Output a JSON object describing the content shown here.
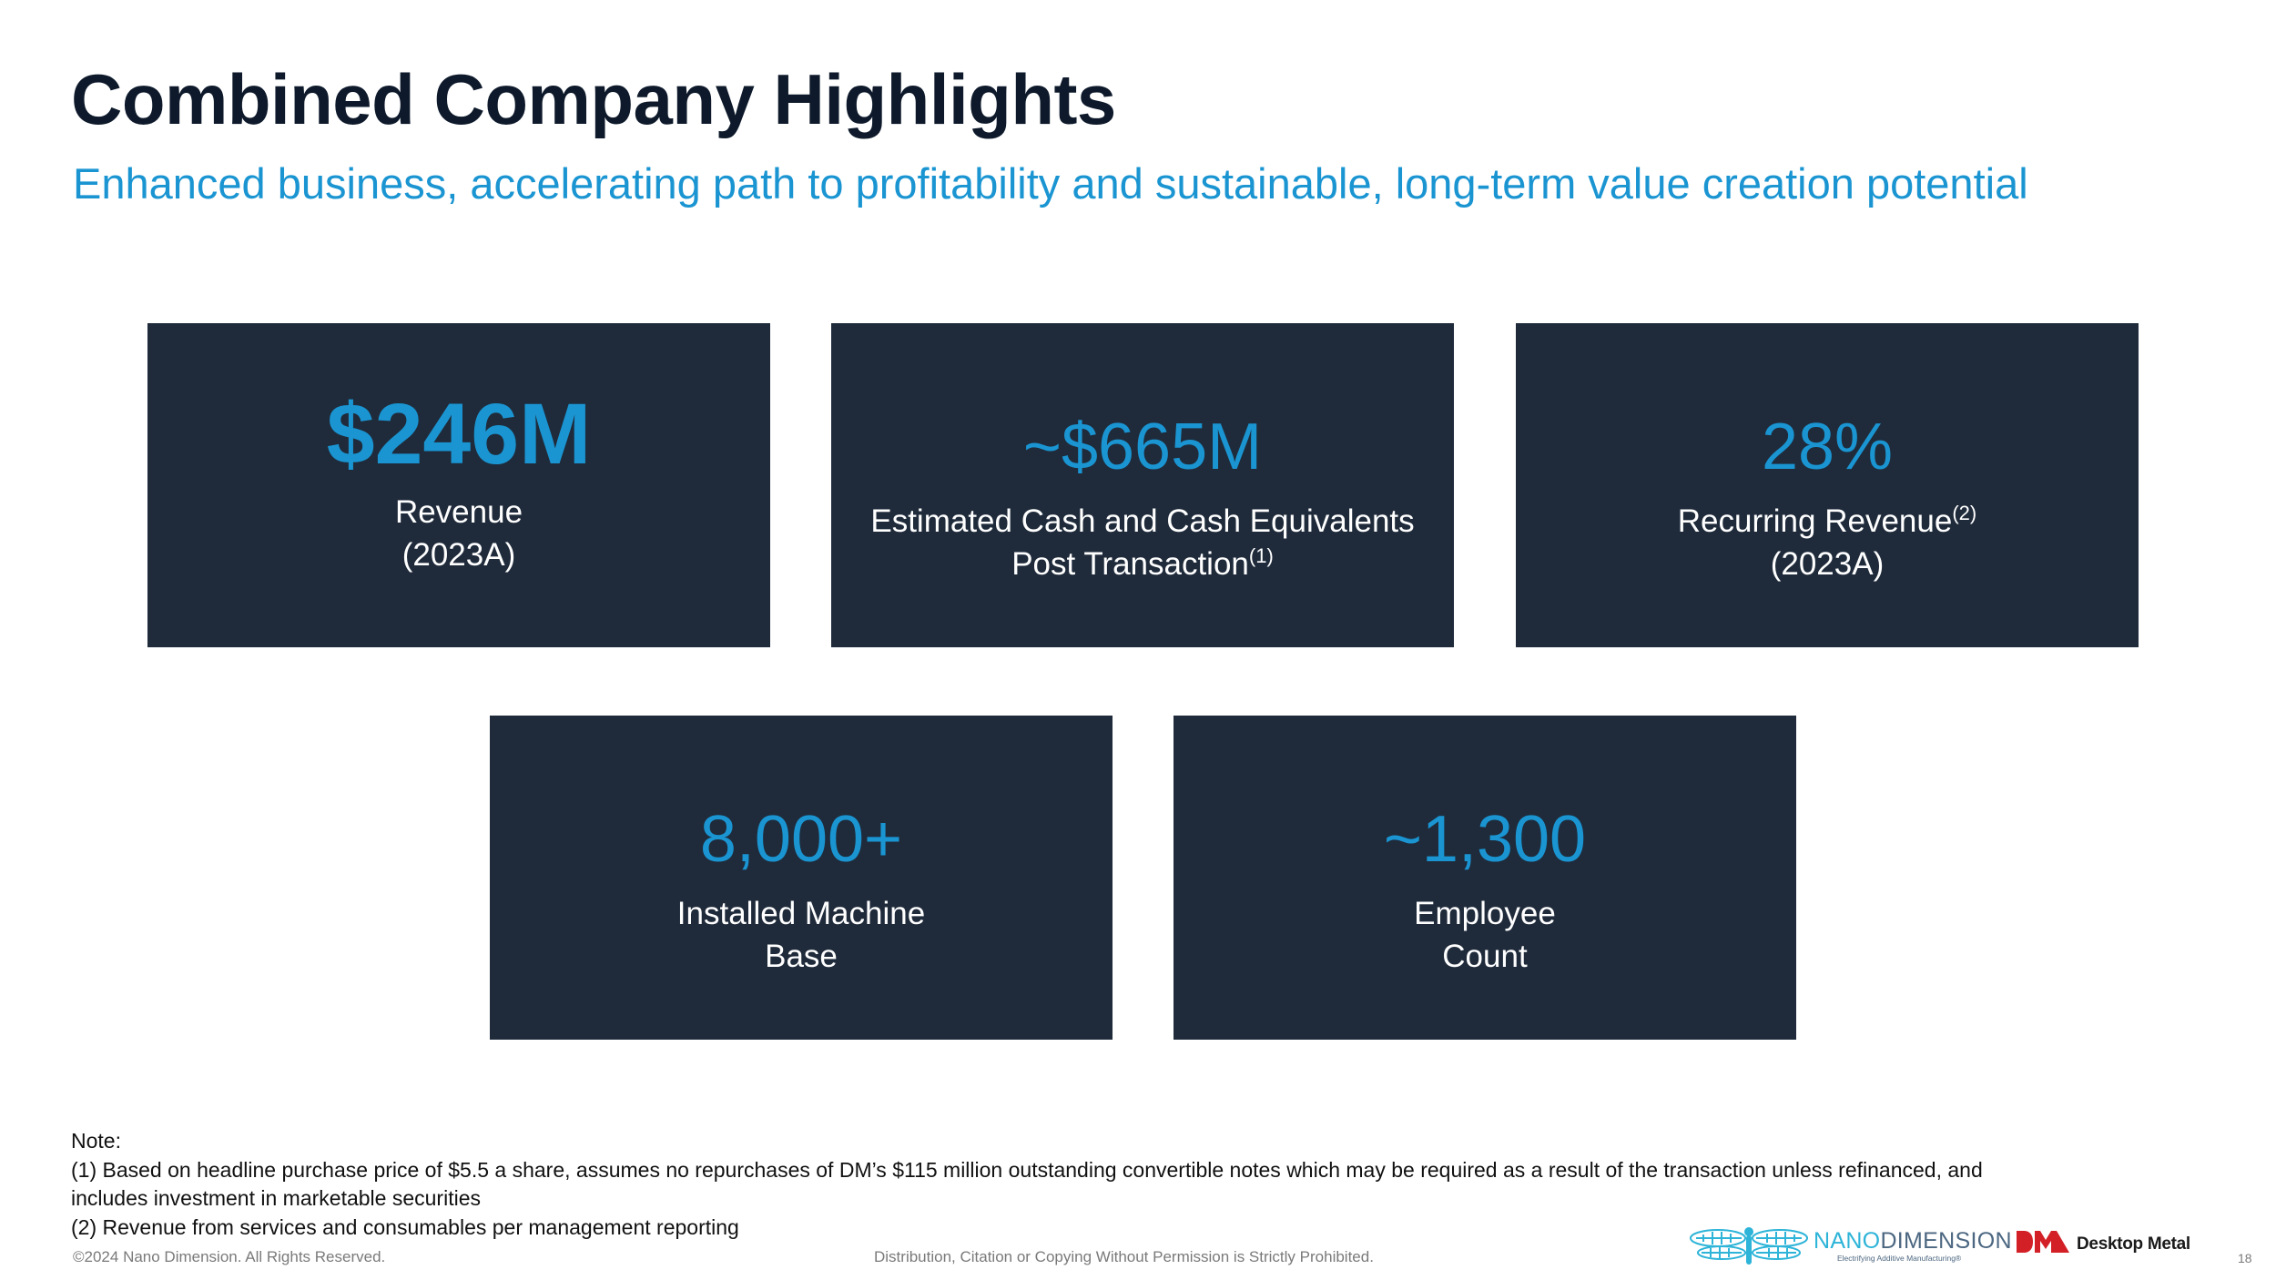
{
  "header": {
    "title": "Combined Company Highlights",
    "subtitle": "Enhanced business, accelerating path to profitability and sustainable, long-term value creation potential"
  },
  "cards": [
    {
      "value": "$246M",
      "label_line1": "Revenue",
      "label_line2": "(2023A)"
    },
    {
      "value": "~$665M",
      "label_line1": "Estimated Cash and Cash Equivalents",
      "label_line2": "Post Transaction",
      "footnote": "(1)"
    },
    {
      "value": "28%",
      "label_line1": "Recurring Revenue",
      "footnote": "(2)",
      "label_line2": "(2023A)"
    },
    {
      "value": "8,000+",
      "label_line1": "Installed Machine",
      "label_line2": "Base"
    },
    {
      "value": "~1,300",
      "label_line1": "Employee",
      "label_line2": "Count"
    }
  ],
  "notes": {
    "heading": "Note:",
    "note1_line1": "(1) Based on headline purchase price of $5.5 a share, assumes no repurchases of DM’s $115 million outstanding convertible notes which may be required as a result of the transaction unless refinanced, and",
    "note1_line2": "includes investment in marketable securities",
    "note2": "(2) Revenue from services and consumables per management reporting"
  },
  "footer": {
    "copyright": "©2024 Nano Dimension. All Rights Reserved.",
    "disclaimer": "Distribution, Citation or Copying Without Permission is Strictly Prohibited.",
    "page_number": "18"
  },
  "logos": {
    "nano_name_light": "NANO",
    "nano_name_dark": "DIMENSION",
    "nano_tagline": "Electrifying Additive Manufacturing®",
    "dm_name": "Desktop Metal"
  },
  "colors": {
    "accent": "#1a95d2",
    "card_background": "#1f2b3b",
    "title": "#0e1a2b",
    "dm_red": "#d32027",
    "nano_teal": "#2db4d8"
  }
}
